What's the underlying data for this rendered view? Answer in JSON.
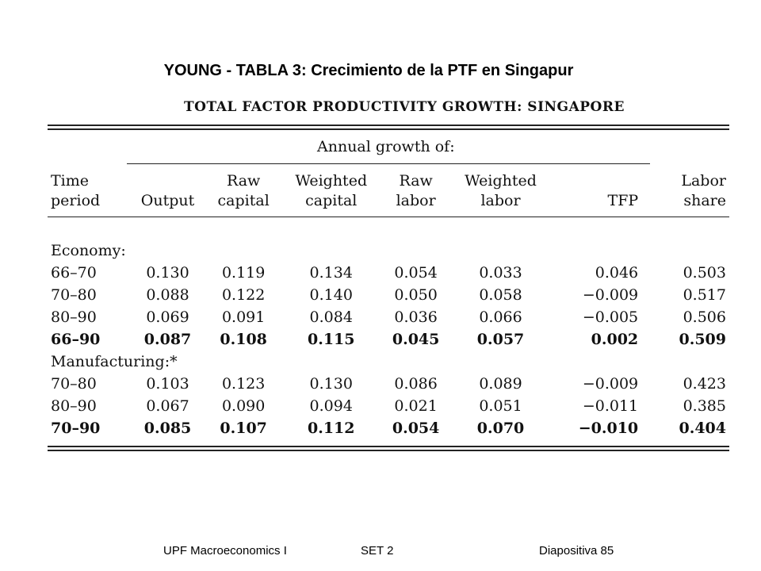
{
  "slide": {
    "title": "YOUNG - TABLA 3: Crecimiento de la PTF en Singapur"
  },
  "table": {
    "heading": "TOTAL FACTOR PRODUCTIVITY GROWTH: SINGAPORE",
    "group_label": "Annual growth of:",
    "columns": [
      {
        "line1": "Time",
        "line2": "period"
      },
      {
        "line1": "",
        "line2": "Output"
      },
      {
        "line1": "Raw",
        "line2": "capital"
      },
      {
        "line1": "Weighted",
        "line2": "capital"
      },
      {
        "line1": "Raw",
        "line2": "labor"
      },
      {
        "line1": "Weighted",
        "line2": "labor"
      },
      {
        "line1": "",
        "line2": "TFP"
      },
      {
        "line1": "Labor",
        "line2": "share"
      }
    ],
    "sections": [
      {
        "label": "Economy:",
        "rows": [
          [
            "66–70",
            "0.130",
            "0.119",
            "0.134",
            "0.054",
            "0.033",
            "0.046",
            "0.503"
          ],
          [
            "70–80",
            "0.088",
            "0.122",
            "0.140",
            "0.050",
            "0.058",
            "−0.009",
            "0.517"
          ],
          [
            "80–90",
            "0.069",
            "0.091",
            "0.084",
            "0.036",
            "0.066",
            "−0.005",
            "0.506"
          ],
          [
            "66–90",
            "0.087",
            "0.108",
            "0.115",
            "0.045",
            "0.057",
            "0.002",
            "0.509"
          ]
        ]
      },
      {
        "label": "Manufacturing:*",
        "rows": [
          [
            "70–80",
            "0.103",
            "0.123",
            "0.130",
            "0.086",
            "0.089",
            "−0.009",
            "0.423"
          ],
          [
            "80–90",
            "0.067",
            "0.090",
            "0.094",
            "0.021",
            "0.051",
            "−0.011",
            "0.385"
          ],
          [
            "70–90",
            "0.085",
            "0.107",
            "0.112",
            "0.054",
            "0.070",
            "−0.010",
            "0.404"
          ]
        ]
      }
    ]
  },
  "footer": {
    "left": "UPF Macroeconomics I",
    "middle": "SET 2",
    "right": "Diapositiva 85"
  }
}
